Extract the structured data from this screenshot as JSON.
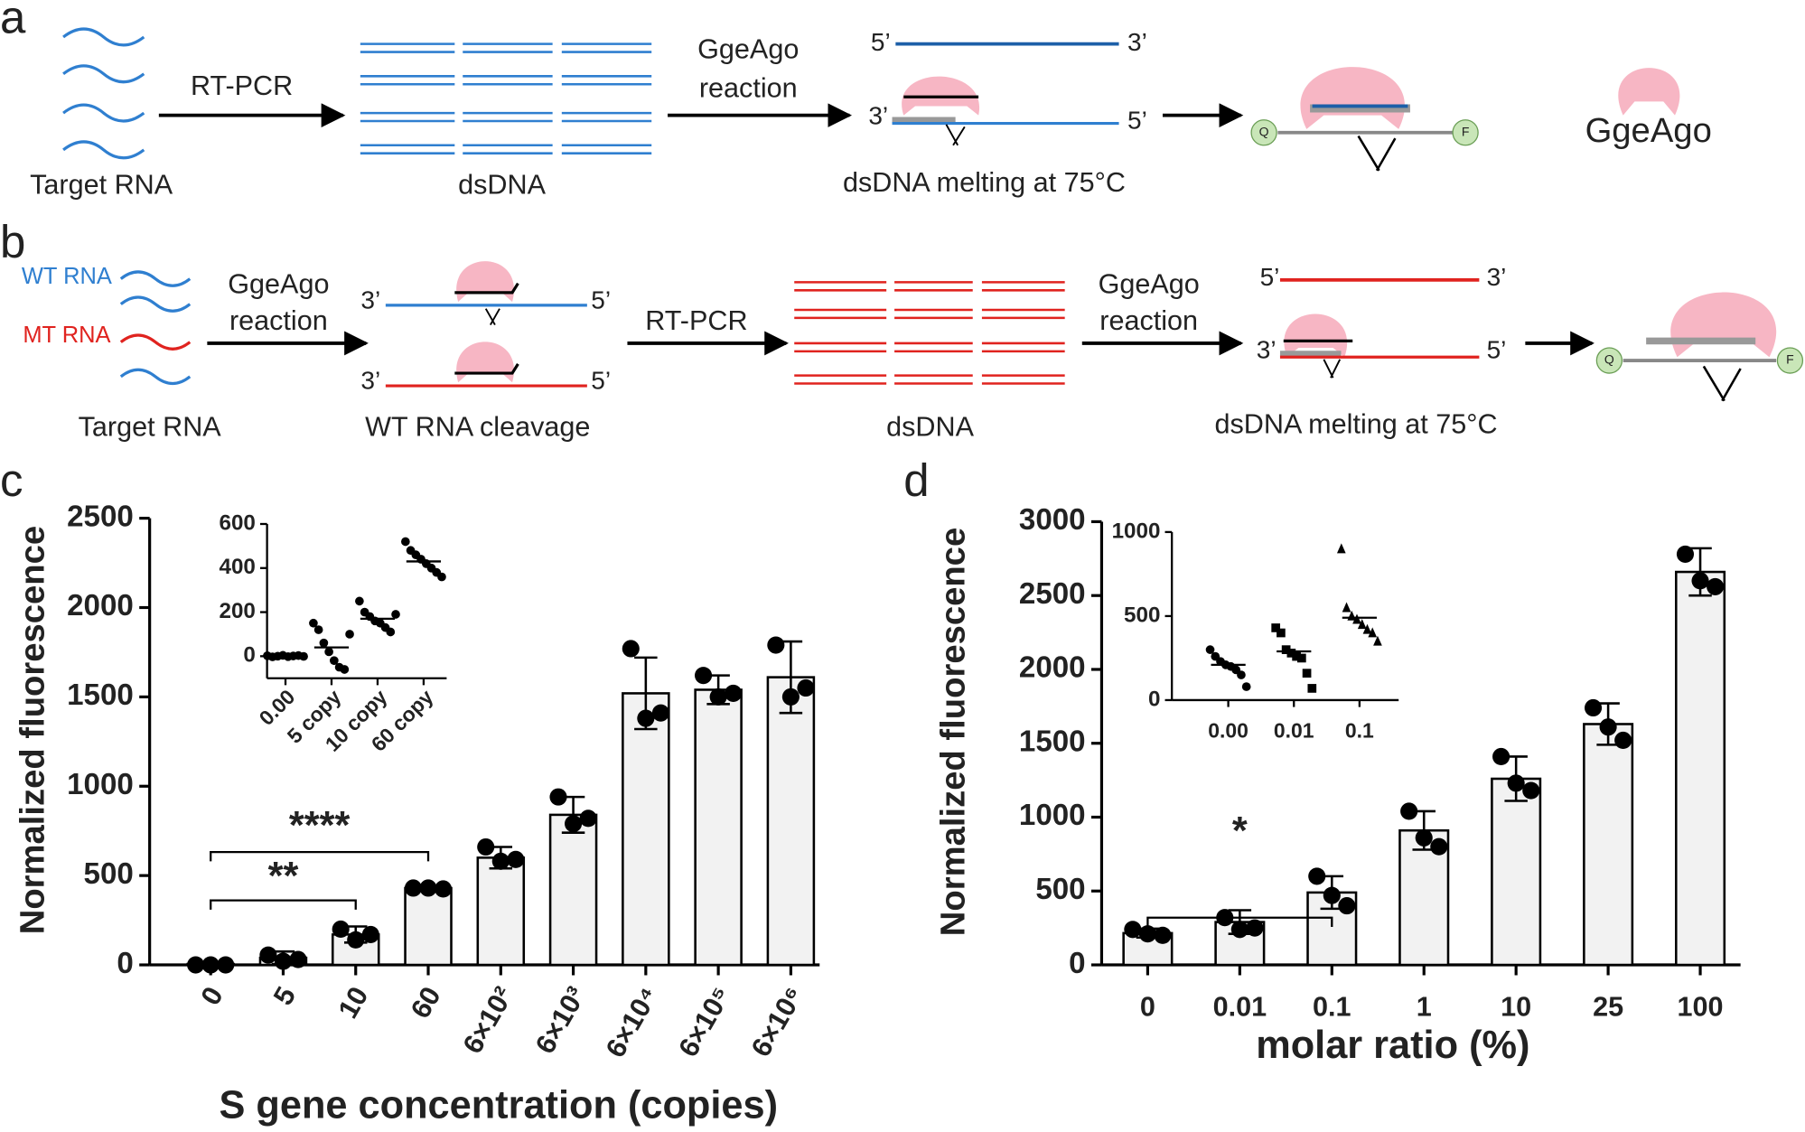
{
  "panel_labels": [
    "a",
    "b"
  ],
  "diagram_a": {
    "input": "Target RNA",
    "step1": "RT-PCR",
    "product": "dsDNA",
    "step2": [
      "GgeAgo",
      "reaction"
    ],
    "strand_ends": [
      "5’",
      "3’",
      "3’",
      "5’"
    ],
    "caption": "dsDNA melting at 75°C",
    "quencher": "Q",
    "fluorophore": "F",
    "legend": "GgeAgo"
  },
  "diagram_b": {
    "rna_labels": [
      "WT RNA",
      "MT RNA"
    ],
    "input": "Target RNA",
    "step1": [
      "GgeAgo",
      "reaction"
    ],
    "cleavage_ends": [
      "3’",
      "5’",
      "3’",
      "5’"
    ],
    "cleavage_caption": "WT RNA cleavage",
    "step2": "RT-PCR",
    "product": "dsDNA",
    "step3": [
      "GgeAgo",
      "reaction"
    ],
    "strand_ends": [
      "5’",
      "3’",
      "3’",
      "5’"
    ],
    "caption": "dsDNA melting at 75°C",
    "quencher": "Q",
    "fluorophore": "F"
  },
  "chart_data": [
    {
      "type": "bar",
      "panel": "c",
      "ylabel": "Normalized fluorescence",
      "xlabel": "S gene concentration (copies)",
      "categories": [
        "0",
        "5",
        "10",
        "60",
        "6×10²",
        "6×10³",
        "6×10⁴",
        "6×10⁵",
        "6×10⁶"
      ],
      "values": [
        5,
        40,
        170,
        430,
        600,
        840,
        1520,
        1540,
        1610
      ],
      "errors": [
        5,
        35,
        45,
        10,
        60,
        100,
        200,
        80,
        200
      ],
      "points": [
        [
          0,
          0,
          0
        ],
        [
          55,
          20,
          30
        ],
        [
          200,
          140,
          170
        ],
        [
          430,
          430,
          425
        ],
        [
          660,
          580,
          590
        ],
        [
          940,
          790,
          820
        ],
        [
          1770,
          1380,
          1410
        ],
        [
          1620,
          1500,
          1520
        ],
        [
          1790,
          1500,
          1550
        ]
      ],
      "color": "#f2f2f2",
      "ylim": [
        0,
        2500
      ],
      "yticks": [
        0,
        500,
        1000,
        1500,
        2000,
        2500
      ],
      "annotations": [
        {
          "text": "****",
          "between": [
            "0",
            "60"
          ]
        },
        {
          "text": "**",
          "between": [
            "0",
            "10"
          ]
        }
      ]
    },
    {
      "type": "strip",
      "categories": [
        "0.00",
        "5 copy",
        "10 copy",
        "60 copy"
      ],
      "points": [
        [
          2,
          -3,
          0,
          4,
          -2,
          1,
          3,
          -1
        ],
        [
          150,
          120,
          60,
          20,
          -20,
          -50,
          -60,
          100
        ],
        [
          250,
          200,
          180,
          160,
          150,
          130,
          110,
          190
        ],
        [
          520,
          480,
          460,
          440,
          420,
          400,
          380,
          360
        ]
      ],
      "means": [
        0,
        40,
        170,
        430
      ],
      "markers": [
        "circle",
        "circle",
        "circle",
        "circle"
      ],
      "ylim": [
        -100,
        600
      ],
      "yticks": [
        0,
        200,
        400,
        600
      ]
    },
    {
      "type": "bar",
      "panel": "d",
      "ylabel": "Normalized fluorescence",
      "xlabel": "molar ratio (%)",
      "categories": [
        "0",
        "0.01",
        "0.1",
        "1",
        "10",
        "25",
        "100"
      ],
      "values": [
        215,
        290,
        490,
        910,
        1260,
        1630,
        2660
      ],
      "errors": [
        30,
        80,
        110,
        130,
        150,
        140,
        160
      ],
      "points": [
        [
          240,
          210,
          200
        ],
        [
          320,
          240,
          250
        ],
        [
          600,
          470,
          400
        ],
        [
          1040,
          860,
          800
        ],
        [
          1410,
          1230,
          1180
        ],
        [
          1740,
          1610,
          1520
        ],
        [
          2780,
          2600,
          2560
        ]
      ],
      "color": "#f2f2f2",
      "ylim": [
        0,
        3000
      ],
      "yticks": [
        0,
        500,
        1000,
        1500,
        2000,
        2500,
        3000
      ],
      "annotations": [
        {
          "text": "*",
          "between": [
            "0",
            "0.1"
          ]
        }
      ]
    },
    {
      "type": "strip",
      "categories": [
        "0.00",
        "0.01",
        "0.1"
      ],
      "points": [
        [
          300,
          260,
          230,
          210,
          200,
          180,
          150,
          80
        ],
        [
          430,
          400,
          300,
          280,
          260,
          250,
          160,
          70
        ],
        [
          900,
          550,
          500,
          480,
          450,
          420,
          400,
          350
        ]
      ],
      "means": [
        210,
        290,
        490
      ],
      "markers": [
        "circle",
        "square",
        "triangle"
      ],
      "ylim": [
        0,
        1000
      ],
      "yticks": [
        0,
        500,
        1000
      ]
    }
  ]
}
